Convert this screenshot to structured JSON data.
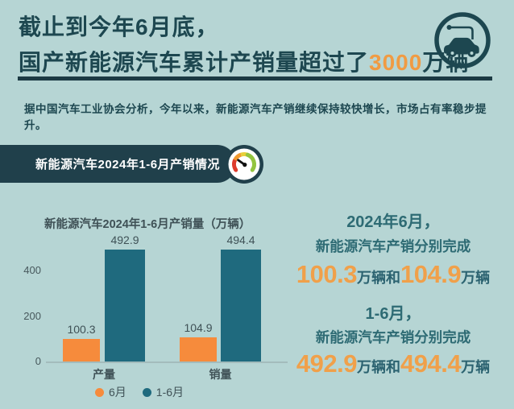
{
  "colors": {
    "background": "#b6d5d4",
    "dark_teal": "#1d4750",
    "badge_background": "#20404b",
    "divider": "#1c3a43",
    "orange_accent": "#f09b43",
    "bar_orange": "#f68b3c",
    "bar_teal": "#1f6a7e",
    "right_text_teal": "#2e6b74"
  },
  "header": {
    "line1": "截止到今年6月底，",
    "line2_prefix": "国产新能源汽车累计产销量超过了",
    "line2_highlight": "3000",
    "line2_suffix": "万辆"
  },
  "intro": "据中国汽车工业协会分析，今年以来，新能源汽车产销继续保持较快增长，市场占有率稳步提升。",
  "section_badge": {
    "label": "新能源汽车2024年1-6月产销情况",
    "icon": "speedometer-gauge"
  },
  "chart_data": {
    "type": "bar",
    "title": "新能源汽车2024年1-6月产销量（万辆）",
    "categories": [
      "产量",
      "销量"
    ],
    "series": [
      {
        "name": "6月",
        "color": "#f68b3c",
        "values": [
          100.3,
          104.9
        ]
      },
      {
        "name": "1-6月",
        "color": "#1f6a7e",
        "values": [
          492.9,
          494.4
        ]
      }
    ],
    "ylim": [
      0,
      530
    ],
    "yticks": [
      0,
      200,
      400
    ],
    "grid": false,
    "legend_position": "bottom"
  },
  "highlights": [
    {
      "period": "2024年6月，",
      "caption": "新能源汽车产销分别完成",
      "value1": "100.3",
      "unit1": "万辆",
      "connector": "和",
      "value2": "104.9",
      "unit2": "万辆"
    },
    {
      "period": "1-6月，",
      "caption": "新能源汽车产销分别完成",
      "value1": "492.9",
      "unit1": "万辆",
      "connector": "和",
      "value2": "494.4",
      "unit2": "万辆"
    }
  ]
}
